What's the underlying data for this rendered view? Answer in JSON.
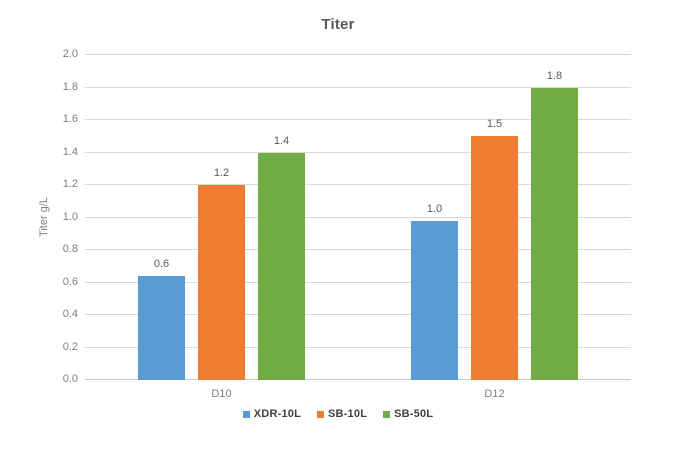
{
  "title": "Titer",
  "chart_data": {
    "type": "bar",
    "title": "Titer",
    "xlabel": "",
    "ylabel": "Titer g/L",
    "ylim": [
      0.0,
      2.0
    ],
    "ytick_step": 0.2,
    "ytick_decimals": 1,
    "grid": true,
    "legend_position": "bottom",
    "categories": [
      "D10",
      "D12"
    ],
    "series": [
      {
        "name": "XDR-10L",
        "color": "#5B9BD5",
        "values": [
          0.64,
          0.98
        ],
        "labels": [
          "0.6",
          "1.0"
        ]
      },
      {
        "name": "SB-10L",
        "color": "#ED7D31",
        "values": [
          1.2,
          1.5
        ],
        "labels": [
          "1.2",
          "1.5"
        ]
      },
      {
        "name": "SB-50L",
        "color": "#70AD47",
        "values": [
          1.4,
          1.8
        ],
        "labels": [
          "1.4",
          "1.8"
        ]
      }
    ]
  },
  "colors": {
    "background": "#FFFFFF",
    "gridline": "#D9D9D9",
    "title_text": "#595959",
    "tick_text": "#7F7F7F",
    "data_label_text": "#595959",
    "legend_text": "#404040"
  }
}
